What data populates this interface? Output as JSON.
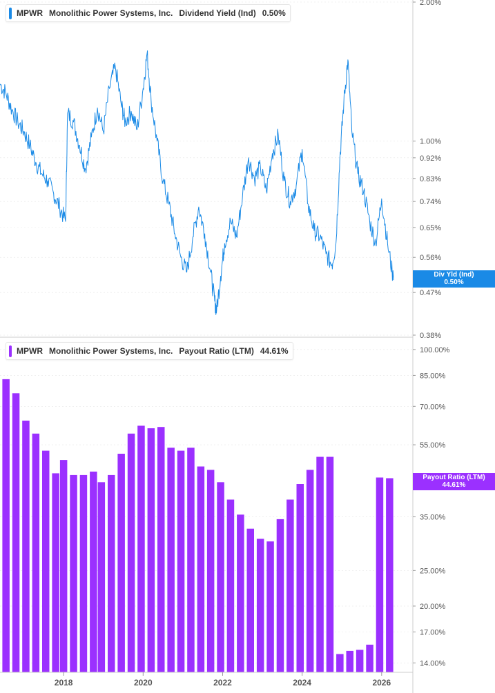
{
  "colors": {
    "yield_line": "#1a8ae6",
    "payout_bars": "#9b30ff",
    "axis_text": "#555555",
    "grid": "#e6e6e6"
  },
  "top_legend": {
    "ticker": "MPWR",
    "company": "Monolithic Power Systems, Inc.",
    "metric": "Dividend Yield (Ind)",
    "value": "0.50%"
  },
  "bottom_legend": {
    "ticker": "MPWR",
    "company": "Monolithic Power Systems, Inc.",
    "metric": "Payout Ratio (LTM)",
    "value": "44.61%"
  },
  "top_badge": {
    "label": "Div Yld (Ind)",
    "value": "0.50%"
  },
  "bottom_badge": {
    "label": "Payout Ratio (LTM)",
    "value": "44.61%"
  },
  "chart_data": [
    {
      "type": "line",
      "scale": "log",
      "series": [
        {
          "name": "Dividend Yield (Ind)",
          "x": [
            2016.4,
            2016.55,
            2016.7,
            2016.85,
            2017.0,
            2017.15,
            2017.3,
            2017.45,
            2017.6,
            2017.75,
            2017.9,
            2018.05,
            2018.1,
            2018.25,
            2018.4,
            2018.55,
            2018.7,
            2018.85,
            2019.0,
            2019.15,
            2019.3,
            2019.45,
            2019.55,
            2019.7,
            2019.85,
            2020.0,
            2020.1,
            2020.2,
            2020.35,
            2020.5,
            2020.65,
            2020.8,
            2020.95,
            2021.1,
            2021.25,
            2021.4,
            2021.55,
            2021.7,
            2021.8,
            2021.85,
            2021.95,
            2022.05,
            2022.2,
            2022.35,
            2022.5,
            2022.65,
            2022.8,
            2022.95,
            2023.1,
            2023.25,
            2023.4,
            2023.55,
            2023.7,
            2023.85,
            2024.0,
            2024.15,
            2024.3,
            2024.45,
            2024.6,
            2024.75,
            2024.85,
            2024.95,
            2025.05,
            2025.15,
            2025.25,
            2025.4,
            2025.55,
            2025.7,
            2025.85,
            2026.0,
            2026.15,
            2026.3
          ],
          "values": [
            1.33,
            1.27,
            1.17,
            1.1,
            1.05,
            0.98,
            0.9,
            0.85,
            0.82,
            0.77,
            0.72,
            0.67,
            1.15,
            1.1,
            0.98,
            0.87,
            1.02,
            1.18,
            1.05,
            1.3,
            1.45,
            1.2,
            1.1,
            1.16,
            1.06,
            1.3,
            1.55,
            1.23,
            1.0,
            0.82,
            0.73,
            0.63,
            0.56,
            0.52,
            0.62,
            0.72,
            0.63,
            0.52,
            0.45,
            0.43,
            0.51,
            0.6,
            0.67,
            0.62,
            0.76,
            0.92,
            0.83,
            0.88,
            0.78,
            0.94,
            1.03,
            0.82,
            0.74,
            0.8,
            0.96,
            0.73,
            0.64,
            0.62,
            0.57,
            0.54,
            0.6,
            0.92,
            1.22,
            1.5,
            1.05,
            0.85,
            0.78,
            0.67,
            0.6,
            0.75,
            0.6,
            0.5
          ]
        }
      ],
      "yticks": [
        "0.38%",
        "0.47%",
        "0.56%",
        "0.65%",
        "0.74%",
        "0.83%",
        "0.92%",
        "1.00%",
        "2.00%"
      ],
      "ylim": [
        0.38,
        2.0
      ],
      "xlim": [
        2016.4,
        2026.75
      ]
    },
    {
      "type": "bar",
      "scale": "log",
      "series": [
        {
          "name": "Payout Ratio (LTM)",
          "x": [
            2016.55,
            2016.8,
            2017.05,
            2017.3,
            2017.55,
            2017.8,
            2018.0,
            2018.25,
            2018.5,
            2018.75,
            2018.95,
            2019.2,
            2019.45,
            2019.7,
            2019.95,
            2020.2,
            2020.45,
            2020.7,
            2020.95,
            2021.2,
            2021.45,
            2021.7,
            2021.95,
            2022.2,
            2022.45,
            2022.7,
            2022.95,
            2023.2,
            2023.45,
            2023.7,
            2023.95,
            2024.2,
            2024.45,
            2024.7,
            2024.95,
            2025.2,
            2025.45,
            2025.7,
            2025.95,
            2026.2
          ],
          "values": [
            83,
            76,
            64,
            59,
            53,
            46,
            50,
            45.5,
            45.5,
            46.5,
            43.5,
            45.5,
            52,
            59,
            62,
            61,
            61.5,
            54,
            53,
            54,
            48,
            47,
            43.5,
            39,
            35.5,
            32.5,
            30.5,
            30,
            34.5,
            39,
            43,
            47,
            51,
            51,
            14.8,
            15.1,
            15.2,
            15.7,
            44.8,
            44.61
          ]
        }
      ],
      "yticks": [
        "14.00%",
        "17.00%",
        "20.00%",
        "25.00%",
        "35.00%",
        "55.00%",
        "70.00%",
        "85.00%",
        "100.00%"
      ],
      "ylim": [
        13.2,
        103
      ],
      "x_tick_labels": [
        "2018",
        "2020",
        "2022",
        "2024",
        "2026"
      ],
      "xlim": [
        2016.4,
        2026.75
      ]
    }
  ]
}
